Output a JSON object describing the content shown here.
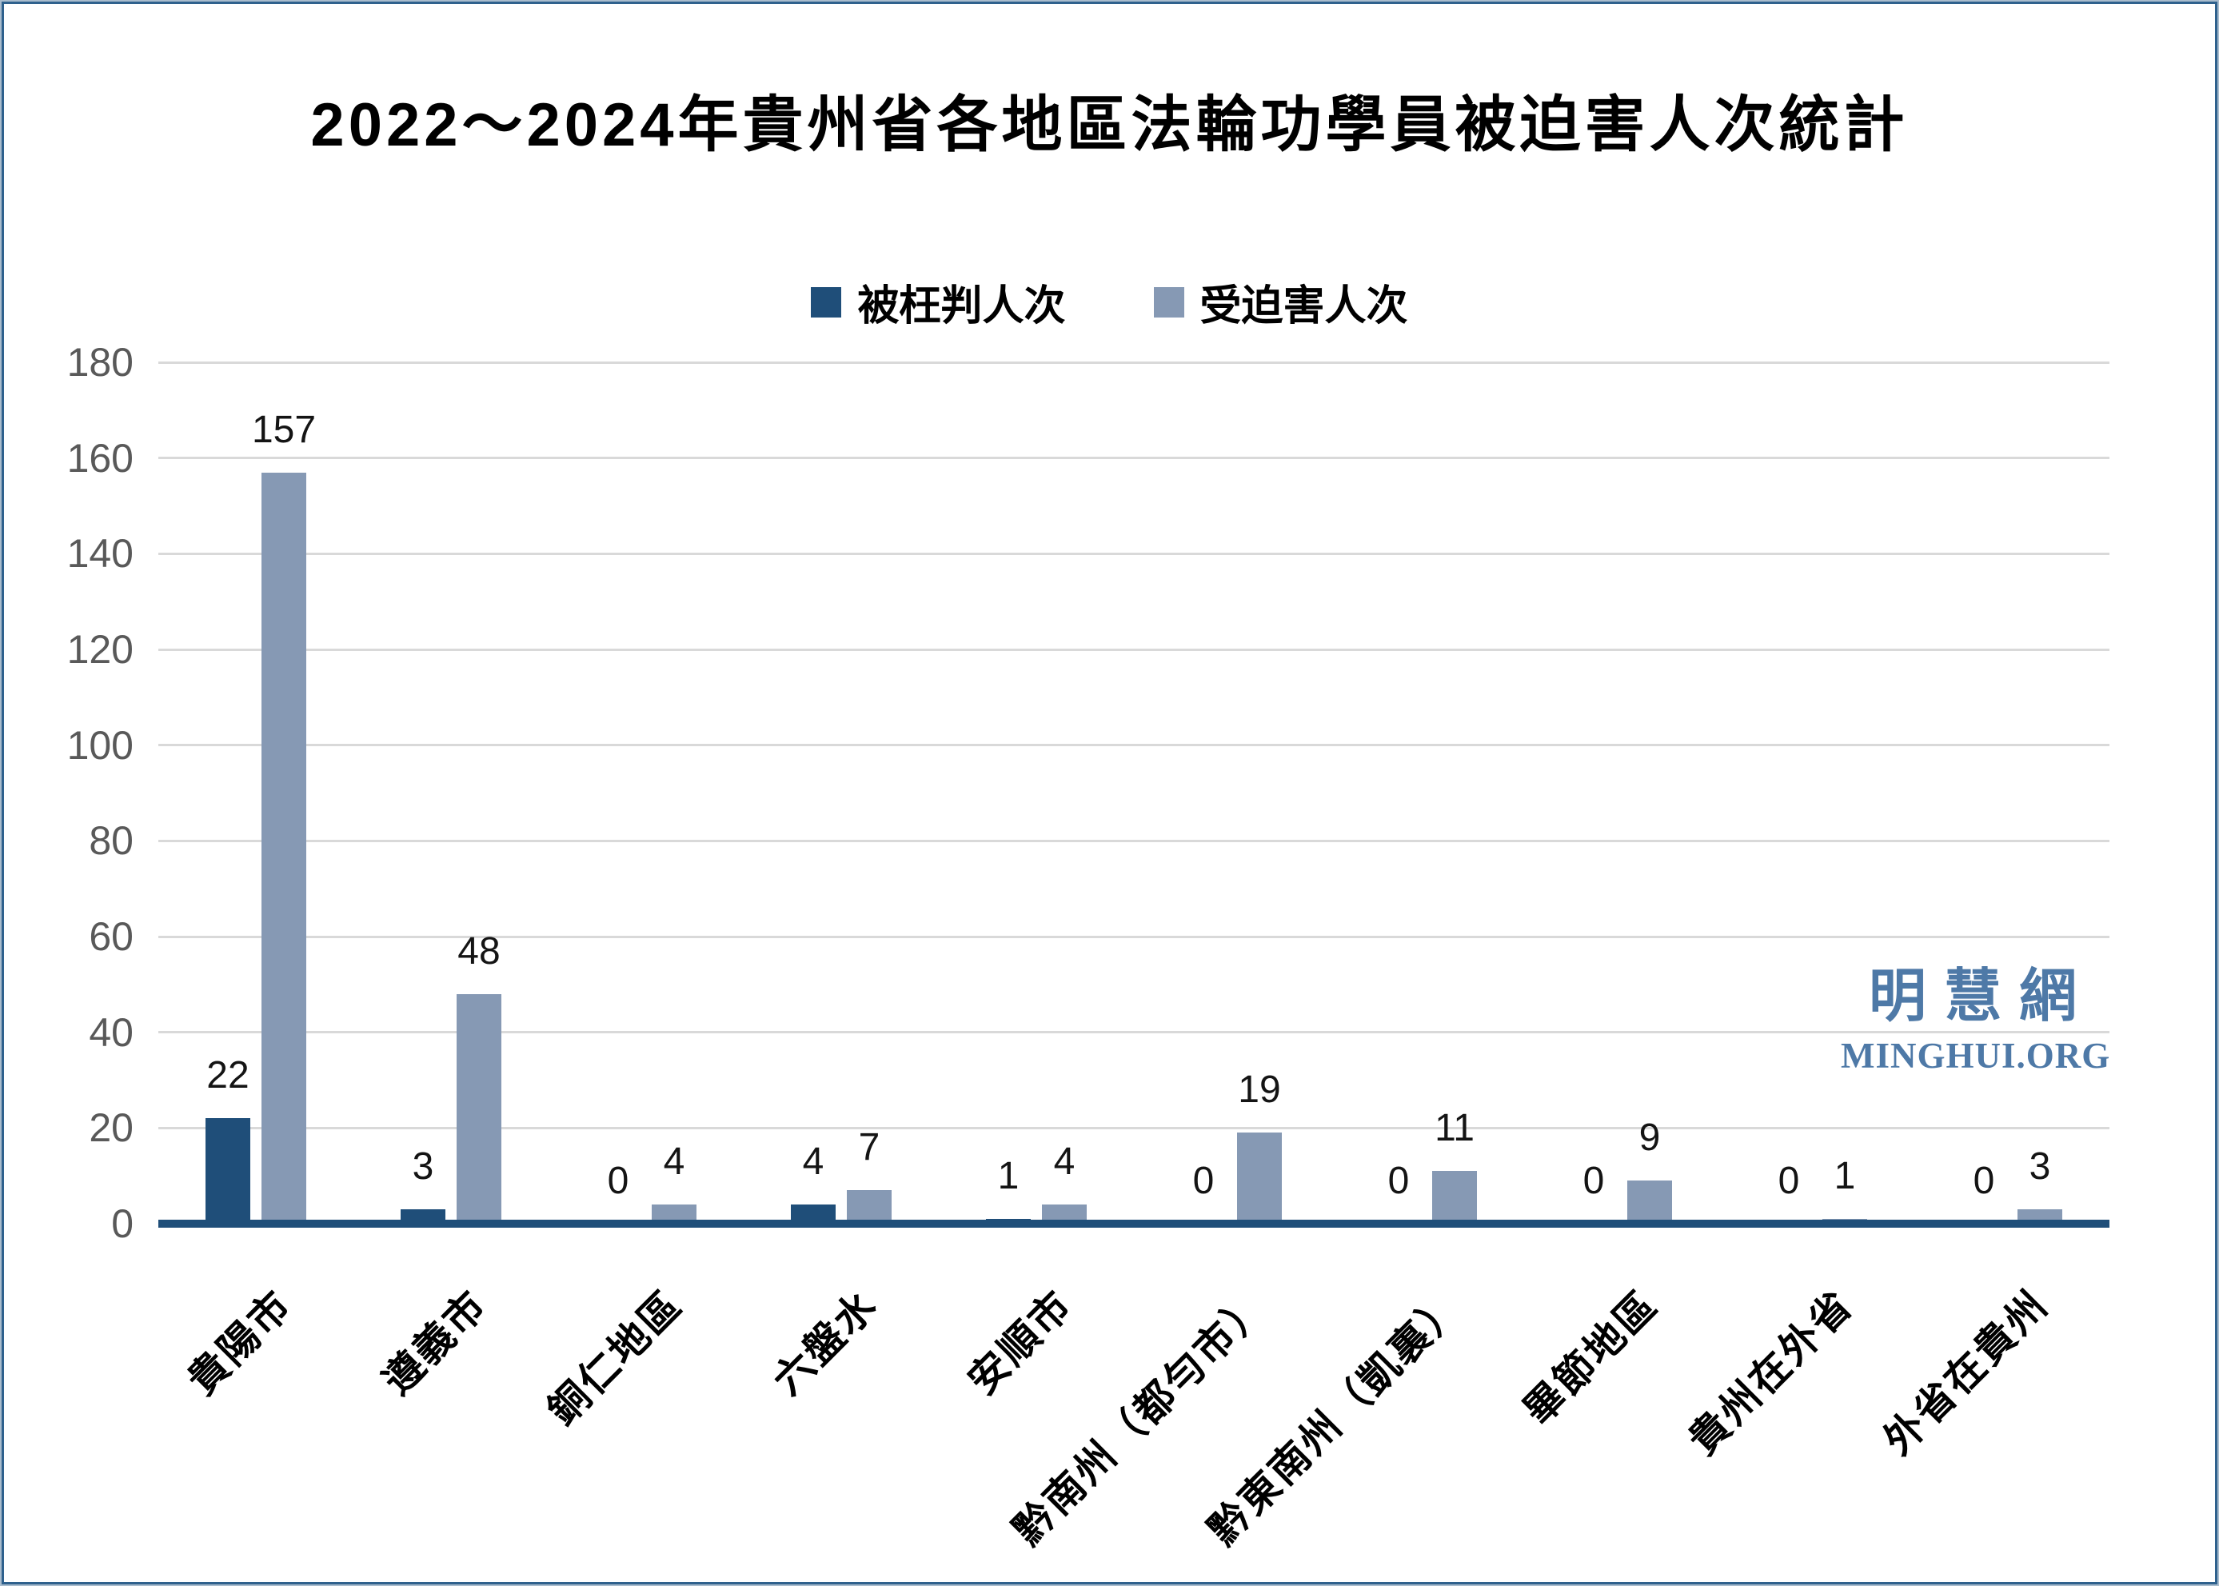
{
  "title": "2022～2024年貴州省各地區法輪功學員被迫害人次統計",
  "legend": {
    "items": [
      {
        "label": "被枉判人次",
        "color": "#1F4E79"
      },
      {
        "label": "受迫害人次",
        "color": "#8699B4"
      }
    ]
  },
  "watermark": {
    "site_name_cjk": "明慧網",
    "site_name_latin": "MINGHUI.ORG",
    "color": "#4E79A7"
  },
  "colors": {
    "axis_line": "#1F4E79",
    "gridline": "#D9D9D9",
    "y_tick_text": "#595959",
    "value_label_text": "#141414",
    "frame_border_outer": "#A9BCCD",
    "frame_border_inner": "#2F618D"
  },
  "chart_data": {
    "type": "bar",
    "title": "2022～2024年貴州省各地區法輪功學員被迫害人次統計",
    "categories": [
      "貴陽市",
      "遵義市",
      "銅仁地區",
      "六盤水",
      "安順市",
      "黔南州（都勻市）",
      "黔東南州（凱裏）",
      "畢節地區",
      "貴州在外省",
      "外省在貴州"
    ],
    "series": [
      {
        "name": "被枉判人次",
        "color": "#1F4E79",
        "values": [
          22,
          3,
          0,
          4,
          1,
          0,
          0,
          0,
          0,
          0
        ]
      },
      {
        "name": "受迫害人次",
        "color": "#8699B4",
        "values": [
          157,
          48,
          4,
          7,
          4,
          19,
          11,
          9,
          1,
          3
        ]
      }
    ],
    "xlabel": "",
    "ylabel": "",
    "ylim": [
      0,
      180
    ],
    "y_ticks": [
      0,
      20,
      40,
      60,
      80,
      100,
      120,
      140,
      160,
      180
    ],
    "grid": true,
    "legend_position": "top",
    "data_labels": true
  }
}
